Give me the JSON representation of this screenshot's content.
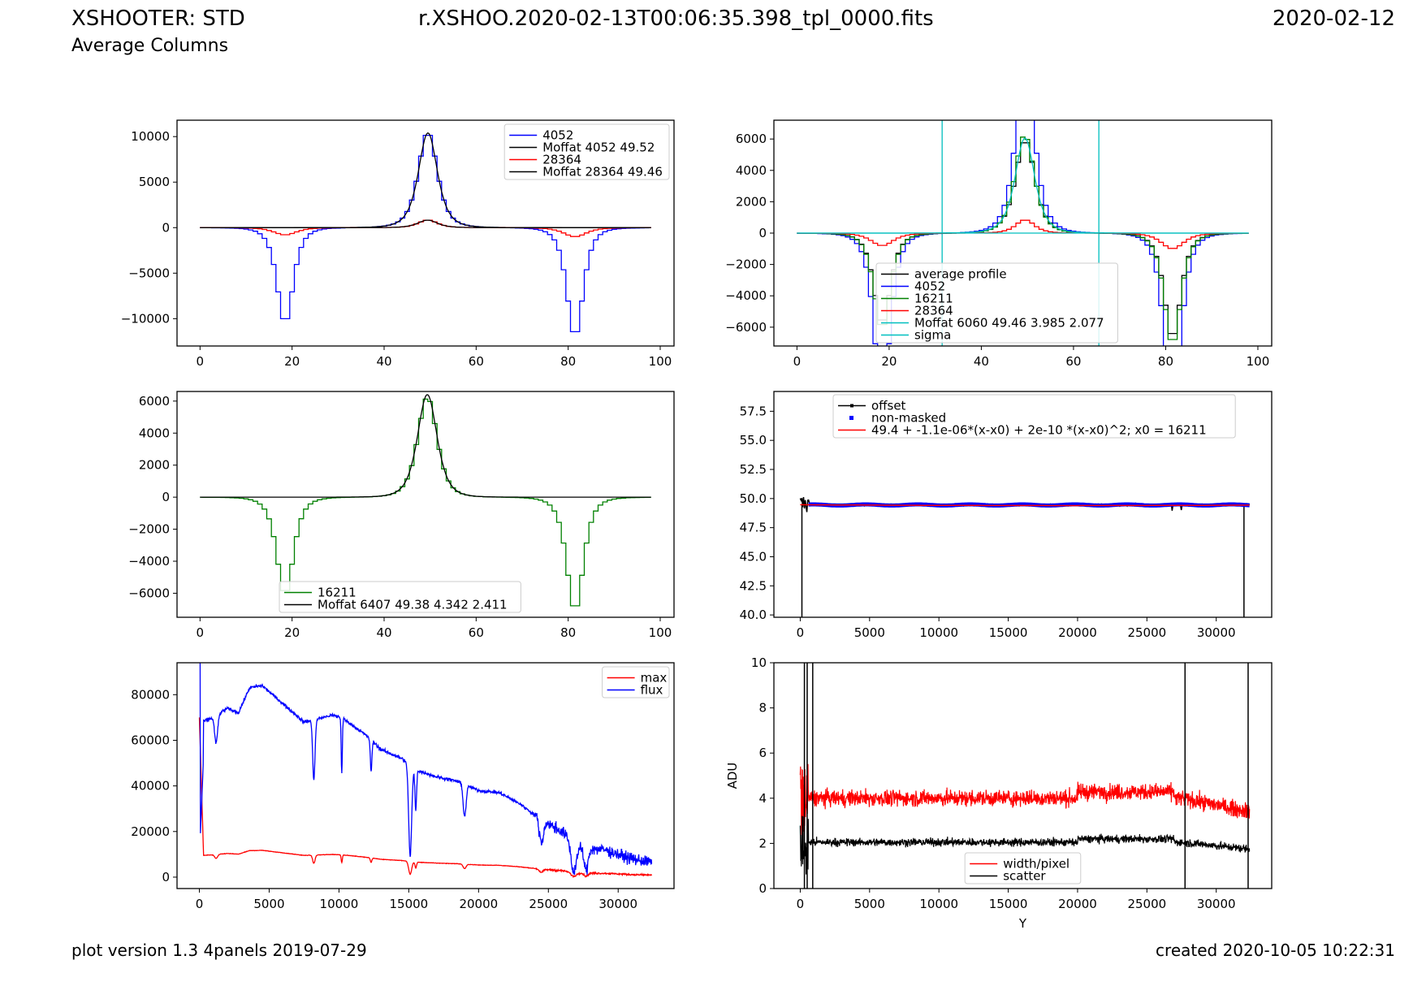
{
  "header": {
    "instrument": "XSHOOTER: STD",
    "subtitle": "Average Columns",
    "filename": "r.XSHOO.2020-02-13T00:06:35.398_tpl_0000.fits",
    "night": "2020-02-12"
  },
  "footer": {
    "version": "plot version 1.3 4panels  2019-07-29",
    "created": "created 2020-10-05 10:22:31"
  },
  "chart_data": [
    {
      "id": "top-left",
      "type": "line",
      "title": "",
      "xlabel": "",
      "ylabel": "",
      "xlim": [
        -5,
        103
      ],
      "ylim": [
        -13000,
        11800
      ],
      "xticks": [
        0,
        20,
        40,
        60,
        80,
        100
      ],
      "yticks": [
        -10000,
        -5000,
        0,
        5000,
        10000
      ],
      "legend": "top-right",
      "series": [
        {
          "name": "4052",
          "color": "#0000ff",
          "kind": "step",
          "profile": {
            "amp": 10500,
            "center": 49.5,
            "alpha": 3.9,
            "beta": 2.1,
            "negamp": -10500,
            "neg1": 18.5,
            "neg2": 81.5,
            "negamp2": -12000,
            "negwidth": 3.2
          }
        },
        {
          "name": "Moffat 4052 49.52",
          "color": "#000000",
          "kind": "moffat",
          "profile": {
            "amp": 10400,
            "center": 49.52,
            "alpha": 3.9,
            "beta": 2.1
          }
        },
        {
          "name": "28364",
          "color": "#ff0000",
          "kind": "step",
          "profile": {
            "amp": 850,
            "center": 49.5,
            "alpha": 3.9,
            "beta": 2.1,
            "negamp": -800,
            "neg1": 18.5,
            "neg2": 81.5,
            "negamp2": -1000,
            "negwidth": 4.5
          }
        },
        {
          "name": "Moffat 28364 49.46",
          "color": "#000000",
          "kind": "moffat",
          "profile": {
            "amp": 820,
            "center": 49.46,
            "alpha": 4.2,
            "beta": 2.2
          }
        }
      ]
    },
    {
      "id": "top-right",
      "type": "line",
      "title": "",
      "xlabel": "",
      "ylabel": "",
      "xlim": [
        -5,
        103
      ],
      "ylim": [
        -7200,
        7200
      ],
      "xticks": [
        0,
        20,
        40,
        60,
        80,
        100
      ],
      "yticks": [
        -6000,
        -4000,
        -2000,
        0,
        2000,
        4000,
        6000
      ],
      "legend": "lower-center",
      "vlines": [
        {
          "x": 31.5,
          "color": "#00bfbf"
        },
        {
          "x": 65.5,
          "color": "#00bfbf"
        }
      ],
      "series": [
        {
          "name": "average profile",
          "color": "#000000",
          "kind": "step",
          "profile": {
            "amp": 5950,
            "center": 49.5,
            "alpha": 3.985,
            "beta": 2.077,
            "negamp": -5800,
            "neg1": 18.5,
            "neg2": 81.5,
            "negamp2": -6700,
            "negwidth": 3.3
          }
        },
        {
          "name": "4052",
          "color": "#0000ff",
          "kind": "step",
          "profile": {
            "amp": 10500,
            "center": 49.5,
            "alpha": 3.9,
            "beta": 2.1,
            "negamp": -10500,
            "neg1": 18.5,
            "neg2": 81.5,
            "negamp2": -12000,
            "negwidth": 3.2
          }
        },
        {
          "name": "16211",
          "color": "#008000",
          "kind": "step",
          "profile": {
            "amp": 6250,
            "center": 49.4,
            "alpha": 4.342,
            "beta": 2.411,
            "negamp": -6100,
            "neg1": 18.5,
            "neg2": 81.5,
            "negamp2": -7100,
            "negwidth": 3.3
          }
        },
        {
          "name": "28364",
          "color": "#ff0000",
          "kind": "step",
          "profile": {
            "amp": 850,
            "center": 49.5,
            "alpha": 3.9,
            "beta": 2.1,
            "negamp": -800,
            "neg1": 18.5,
            "neg2": 81.5,
            "negamp2": -1000,
            "negwidth": 4.5
          }
        },
        {
          "name": "Moffat 6060 49.46 3.985 2.077",
          "color": "#00bfbf",
          "kind": "moffat",
          "profile": {
            "amp": 6060,
            "center": 49.46,
            "alpha": 3.985,
            "beta": 2.077
          }
        },
        {
          "name": "sigma",
          "color": "#00bfbf",
          "kind": "hline",
          "value": 0
        }
      ]
    },
    {
      "id": "middle-left",
      "type": "line",
      "title": "",
      "xlabel": "",
      "ylabel": "",
      "xlim": [
        -5,
        103
      ],
      "ylim": [
        -7500,
        6600
      ],
      "xticks": [
        0,
        20,
        40,
        60,
        80,
        100
      ],
      "yticks": [
        -6000,
        -4000,
        -2000,
        0,
        2000,
        4000,
        6000
      ],
      "legend": "lower-center",
      "series": [
        {
          "name": "16211",
          "color": "#008000",
          "kind": "step",
          "profile": {
            "amp": 6250,
            "center": 49.4,
            "alpha": 4.342,
            "beta": 2.411,
            "negamp": -6100,
            "neg1": 18.5,
            "neg2": 81.5,
            "negamp2": -7100,
            "negwidth": 3.3
          }
        },
        {
          "name": "Moffat 6407 49.38 4.342 2.411",
          "color": "#000000",
          "kind": "moffat",
          "profile": {
            "amp": 6407,
            "center": 49.38,
            "alpha": 4.342,
            "beta": 2.411
          }
        }
      ]
    },
    {
      "id": "middle-right",
      "type": "line",
      "title": "",
      "xlabel": "",
      "ylabel": "",
      "xlim": [
        -1900,
        34000
      ],
      "ylim": [
        39.8,
        59.2
      ],
      "xticks": [
        0,
        5000,
        10000,
        15000,
        20000,
        25000,
        30000
      ],
      "yticks": [
        40.0,
        42.5,
        45.0,
        47.5,
        50.0,
        52.5,
        55.0,
        57.5
      ],
      "ytick_decimals": 1,
      "legend": "top-right",
      "series": [
        {
          "name": "offset",
          "color": "#000000",
          "kind": "offset",
          "base": 49.45,
          "xmax": 32400,
          "drops": [
            120,
            32000
          ]
        },
        {
          "name": "non-masked",
          "color": "#0000ff",
          "kind": "band",
          "base": 49.45,
          "xmax": 32400
        },
        {
          "name": "49.4 + -1.1e-06*(x-x0) + 2e-10 *(x-x0)^2; x0 = 16211",
          "color": "#ff0000",
          "kind": "poly",
          "coeffs": [
            49.4,
            -1.1e-06,
            2e-10
          ],
          "x0": 16211,
          "xmin": 0,
          "xmax": 32400
        }
      ]
    },
    {
      "id": "bottom-left",
      "type": "line",
      "title": "",
      "xlabel": "",
      "ylabel": "",
      "xlim": [
        -1600,
        34000
      ],
      "ylim": [
        -5000,
        94000
      ],
      "xticks": [
        0,
        5000,
        10000,
        15000,
        20000,
        25000,
        30000
      ],
      "yticks": [
        0,
        20000,
        40000,
        60000,
        80000
      ],
      "legend": "top-right",
      "series": [
        {
          "name": "max",
          "color": "#ff0000",
          "kind": "spectrum",
          "scale": 0.14
        },
        {
          "name": "flux",
          "color": "#0000ff",
          "kind": "spectrum",
          "scale": 1.0
        }
      ],
      "continuum_knots": [
        [
          200,
          68000
        ],
        [
          1000,
          70000
        ],
        [
          2000,
          74000
        ],
        [
          2800,
          72000
        ],
        [
          3600,
          83000
        ],
        [
          4500,
          84000
        ],
        [
          6000,
          76000
        ],
        [
          7500,
          68000
        ],
        [
          9500,
          71000
        ],
        [
          10200,
          70000
        ],
        [
          12000,
          62000
        ],
        [
          13000,
          56000
        ],
        [
          14500,
          52000
        ],
        [
          15500,
          47000
        ],
        [
          17000,
          44000
        ],
        [
          18500,
          42000
        ],
        [
          20000,
          38000
        ],
        [
          21500,
          37000
        ],
        [
          23000,
          32000
        ],
        [
          24500,
          25000
        ],
        [
          26000,
          20000
        ],
        [
          27000,
          13000
        ],
        [
          29000,
          12000
        ],
        [
          31000,
          8000
        ],
        [
          32400,
          6500
        ]
      ],
      "absorption_lines": [
        [
          1200,
          12000,
          150
        ],
        [
          8200,
          26000,
          120
        ],
        [
          10200,
          24000,
          60
        ],
        [
          12300,
          14000,
          80
        ],
        [
          15100,
          40000,
          150
        ],
        [
          15500,
          18000,
          80
        ],
        [
          19000,
          14000,
          150
        ],
        [
          24500,
          10000,
          200
        ],
        [
          26800,
          12000,
          250
        ],
        [
          27700,
          10000,
          200
        ]
      ]
    },
    {
      "id": "bottom-right",
      "type": "line",
      "title": "",
      "xlabel": "Y",
      "ylabel": "ADU",
      "xlim": [
        -1900,
        34000
      ],
      "ylim": [
        0,
        10
      ],
      "xticks": [
        0,
        5000,
        10000,
        15000,
        20000,
        25000,
        30000
      ],
      "yticks": [
        0,
        2,
        4,
        6,
        8,
        10
      ],
      "legend": "lower-center",
      "spikes": [
        300,
        500,
        900,
        27750,
        32300
      ],
      "series": [
        {
          "name": "width/pixel",
          "color": "#ff0000",
          "kind": "noise",
          "base": 4.0,
          "noise": 0.35
        },
        {
          "name": "scatter",
          "color": "#000000",
          "kind": "noise",
          "base": 2.05,
          "noise": 0.17
        }
      ]
    }
  ]
}
